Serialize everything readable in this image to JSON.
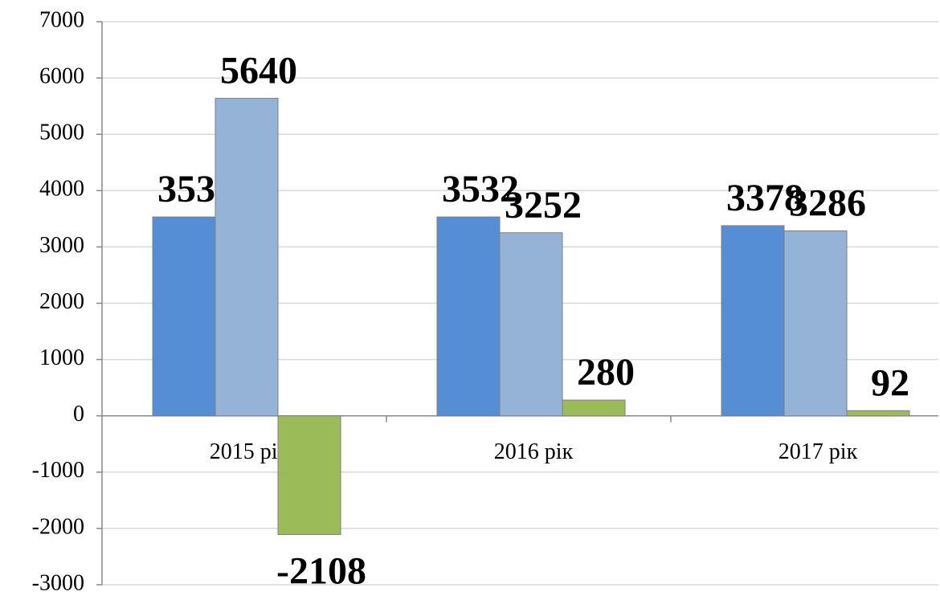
{
  "chart_data": {
    "type": "bar",
    "categories": [
      "2015 рік",
      "2016 рік",
      "2017 рік"
    ],
    "series": [
      {
        "color": "#558ed5",
        "values": [
          3532,
          3532,
          3378
        ]
      },
      {
        "color": "#95b3d7",
        "values": [
          5640,
          3252,
          3286
        ]
      },
      {
        "color": "#9bbb59",
        "values": [
          -2108,
          280,
          92
        ]
      }
    ],
    "ylim": [
      -3000,
      7000
    ],
    "yticks": [
      -3000,
      -2000,
      -1000,
      0,
      1000,
      2000,
      3000,
      4000,
      5000,
      6000,
      7000
    ],
    "grid": true
  }
}
